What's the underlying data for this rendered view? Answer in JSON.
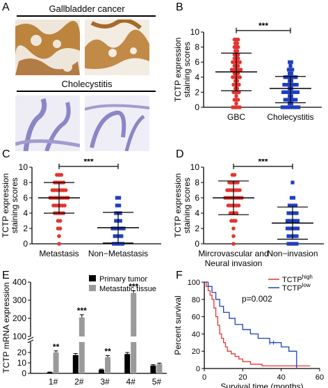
{
  "panels": {
    "A": {
      "letter": "A",
      "top_caption": "Gallbladder cancer",
      "bottom_caption": "Cholecystitis"
    },
    "B": {
      "letter": "B"
    },
    "C": {
      "letter": "C"
    },
    "D": {
      "letter": "D"
    },
    "E": {
      "letter": "E"
    },
    "F": {
      "letter": "F"
    }
  },
  "colors": {
    "red": "#e3342f",
    "blue": "#1f3fbf",
    "black": "#000000",
    "gray": "#9a9a9a",
    "tumor_stain": "#b7792c",
    "inflam_stain": "#8b86c6"
  },
  "chart_data": [
    {
      "id": "B",
      "type": "scatter",
      "ylabel": "TCTP expression staining scores",
      "ylim": [
        0,
        10
      ],
      "yticks": [
        "0",
        "2",
        "4",
        "6",
        "8",
        "10"
      ],
      "categories": [
        "GBC",
        "Cholecystitis"
      ],
      "significance": "***",
      "series": [
        {
          "category": "GBC",
          "mean": 4.7,
          "sd_low": 2.2,
          "sd_high": 7.2,
          "values": [
            9,
            9,
            9,
            8.5,
            8.5,
            8,
            8,
            8,
            7.5,
            7.5,
            7,
            7,
            7,
            6.5,
            6.5,
            6.5,
            6,
            6,
            6,
            6,
            6,
            5.5,
            5.5,
            5.5,
            5,
            5,
            5,
            5,
            5,
            5,
            4.5,
            4.5,
            4.5,
            4,
            4,
            4,
            4,
            4,
            3.5,
            3.5,
            3,
            3,
            3,
            3,
            2.5,
            2.5,
            2,
            2,
            2,
            2,
            1.5,
            1,
            1,
            1,
            0.5,
            0,
            0,
            0,
            0,
            0
          ]
        },
        {
          "category": "Cholecystitis",
          "mean": 2.5,
          "sd_low": 0.6,
          "sd_high": 4.1,
          "values": [
            6,
            6,
            5.5,
            5,
            5,
            5,
            4.5,
            4.5,
            4,
            4,
            4,
            4,
            4,
            4,
            4,
            3.5,
            3.5,
            3,
            3,
            3,
            3,
            3,
            3,
            3,
            3,
            2.5,
            2.5,
            2,
            2,
            2,
            2,
            2,
            2,
            2,
            2,
            2,
            1.5,
            1.5,
            1,
            1,
            1,
            1,
            1,
            1,
            1,
            0.5,
            0.5,
            0,
            0,
            0,
            0,
            0,
            0,
            0,
            0,
            0,
            0
          ]
        }
      ]
    },
    {
      "id": "C",
      "type": "scatter",
      "ylabel": "TCTP expression staining scores",
      "ylim": [
        0,
        10
      ],
      "yticks": [
        "0",
        "2",
        "4",
        "6",
        "8",
        "10"
      ],
      "categories": [
        "Metastasis",
        "Non−Metastasis"
      ],
      "significance": "***",
      "series": [
        {
          "category": "Metastasis",
          "mean": 6.0,
          "sd_low": 4.0,
          "sd_high": 8.0,
          "values": [
            9,
            9,
            9,
            8,
            8,
            8,
            8,
            8,
            7,
            7,
            7,
            7,
            7,
            7,
            7,
            6,
            6,
            6,
            6,
            6,
            6,
            6,
            6,
            6,
            5,
            5,
            5,
            5,
            5,
            5,
            4,
            4,
            4,
            4,
            4,
            3,
            3,
            2,
            2,
            1,
            0
          ]
        },
        {
          "category": "Non−Metastasis",
          "mean": 2.1,
          "sd_low": 0.1,
          "sd_high": 4.1,
          "values": [
            6,
            6,
            5,
            5,
            4,
            4,
            4,
            3,
            3,
            3,
            2,
            2,
            2,
            2,
            2,
            2,
            1,
            1,
            1,
            1,
            0,
            0,
            0,
            0,
            0
          ]
        }
      ]
    },
    {
      "id": "D",
      "type": "scatter",
      "ylabel": "TCTP expression staining scores",
      "ylim": [
        0,
        10
      ],
      "yticks": [
        "0",
        "2",
        "4",
        "6",
        "8",
        "10"
      ],
      "categories": [
        "Mircrovascular and Neural invasion",
        "Non−invasion"
      ],
      "category_lines": [
        [
          "Mircrovascular and",
          "Neural invasion"
        ],
        [
          "Non−invasion"
        ]
      ],
      "significance": "***",
      "series": [
        {
          "category": "Mircrovascular and Neural invasion",
          "mean": 6.0,
          "sd_low": 3.8,
          "sd_high": 8.2,
          "values": [
            9,
            9,
            8,
            8,
            8,
            8,
            8,
            7,
            7,
            7,
            7,
            7,
            7,
            7,
            6,
            6,
            6,
            6,
            6,
            6,
            6,
            6,
            6,
            5,
            5,
            5,
            5,
            5,
            5,
            4,
            4,
            4,
            4,
            3,
            3,
            3,
            2,
            1,
            0
          ]
        },
        {
          "category": "Non−invasion",
          "mean": 2.7,
          "sd_low": 0.6,
          "sd_high": 4.8,
          "values": [
            8,
            6,
            6,
            5,
            5,
            5,
            5,
            4,
            4,
            4,
            4,
            4,
            3,
            3,
            3,
            3,
            3,
            3,
            2,
            2,
            2,
            2,
            2,
            2,
            1,
            1,
            1,
            1,
            1,
            0,
            0,
            0,
            0,
            0
          ]
        }
      ]
    },
    {
      "id": "E",
      "type": "bar",
      "ylabel": "TCTP mRNA expression",
      "axis_break": {
        "lower": [
          0,
          30
        ],
        "upper": [
          100,
          400
        ]
      },
      "yticks_lower": [
        "0",
        "10",
        "20"
      ],
      "yticks_upper": [
        "100",
        "200",
        "300",
        "400"
      ],
      "categories": [
        "1#",
        "2#",
        "3#",
        "4#",
        "5#"
      ],
      "series": [
        {
          "name": "Primary tumor",
          "values": [
            1.0,
            17.5,
            3.5,
            18.5,
            7.5
          ],
          "errors": [
            0.3,
            1.5,
            0.5,
            1.5,
            0.8
          ]
        },
        {
          "name": "Metastatic tissue",
          "values": [
            20.0,
            205,
            15.5,
            340,
            9.0
          ],
          "errors": [
            1.5,
            15,
            1.5,
            12,
            0.8
          ]
        }
      ],
      "annotations": [
        "**",
        "***",
        "**",
        "***",
        ""
      ]
    },
    {
      "id": "F",
      "type": "line",
      "xlabel": "Survival time (months)",
      "ylabel": "Percent survival",
      "xlim": [
        0,
        60
      ],
      "ylim": [
        0,
        100
      ],
      "xticks": [
        "0",
        "20",
        "40",
        "60"
      ],
      "yticks": [
        "0",
        "20",
        "40",
        "60",
        "80",
        "100"
      ],
      "pvalue": "p=0.002",
      "series": [
        {
          "name_main": "TCTP",
          "name_sup": "high",
          "steps": [
            [
              0,
              100
            ],
            [
              1,
              95
            ],
            [
              2,
              90
            ],
            [
              3,
              85
            ],
            [
              4,
              80
            ],
            [
              5,
              70
            ],
            [
              6,
              60
            ],
            [
              7,
              50
            ],
            [
              8,
              40
            ],
            [
              9,
              35
            ],
            [
              10,
              30
            ],
            [
              11,
              25
            ],
            [
              12,
              20
            ],
            [
              14,
              17
            ],
            [
              16,
              14
            ],
            [
              18,
              11
            ],
            [
              20,
              8
            ],
            [
              24,
              5
            ],
            [
              30,
              3
            ],
            [
              55,
              3
            ]
          ]
        },
        {
          "name_main": "TCTP",
          "name_sup": "low",
          "steps": [
            [
              0,
              100
            ],
            [
              2,
              95
            ],
            [
              4,
              88
            ],
            [
              6,
              80
            ],
            [
              8,
              72
            ],
            [
              10,
              65
            ],
            [
              13,
              58
            ],
            [
              16,
              51
            ],
            [
              20,
              45
            ],
            [
              24,
              40
            ],
            [
              28,
              35
            ],
            [
              34,
              30
            ],
            [
              40,
              25
            ],
            [
              44,
              20
            ],
            [
              48,
              10
            ],
            [
              48,
              0
            ]
          ]
        }
      ],
      "censor_marks": [
        [
          34,
          30
        ],
        [
          36,
          30
        ]
      ]
    }
  ]
}
